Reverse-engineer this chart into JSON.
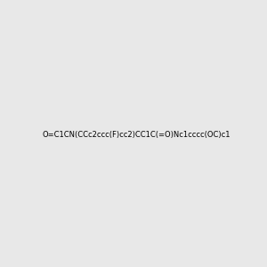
{
  "smiles": "O=C1CN(CCc2ccc(F)cc2)CC1C(=O)Nc1cccc(OC)c1",
  "image_size": 300,
  "background_color": "#e8e8e8"
}
